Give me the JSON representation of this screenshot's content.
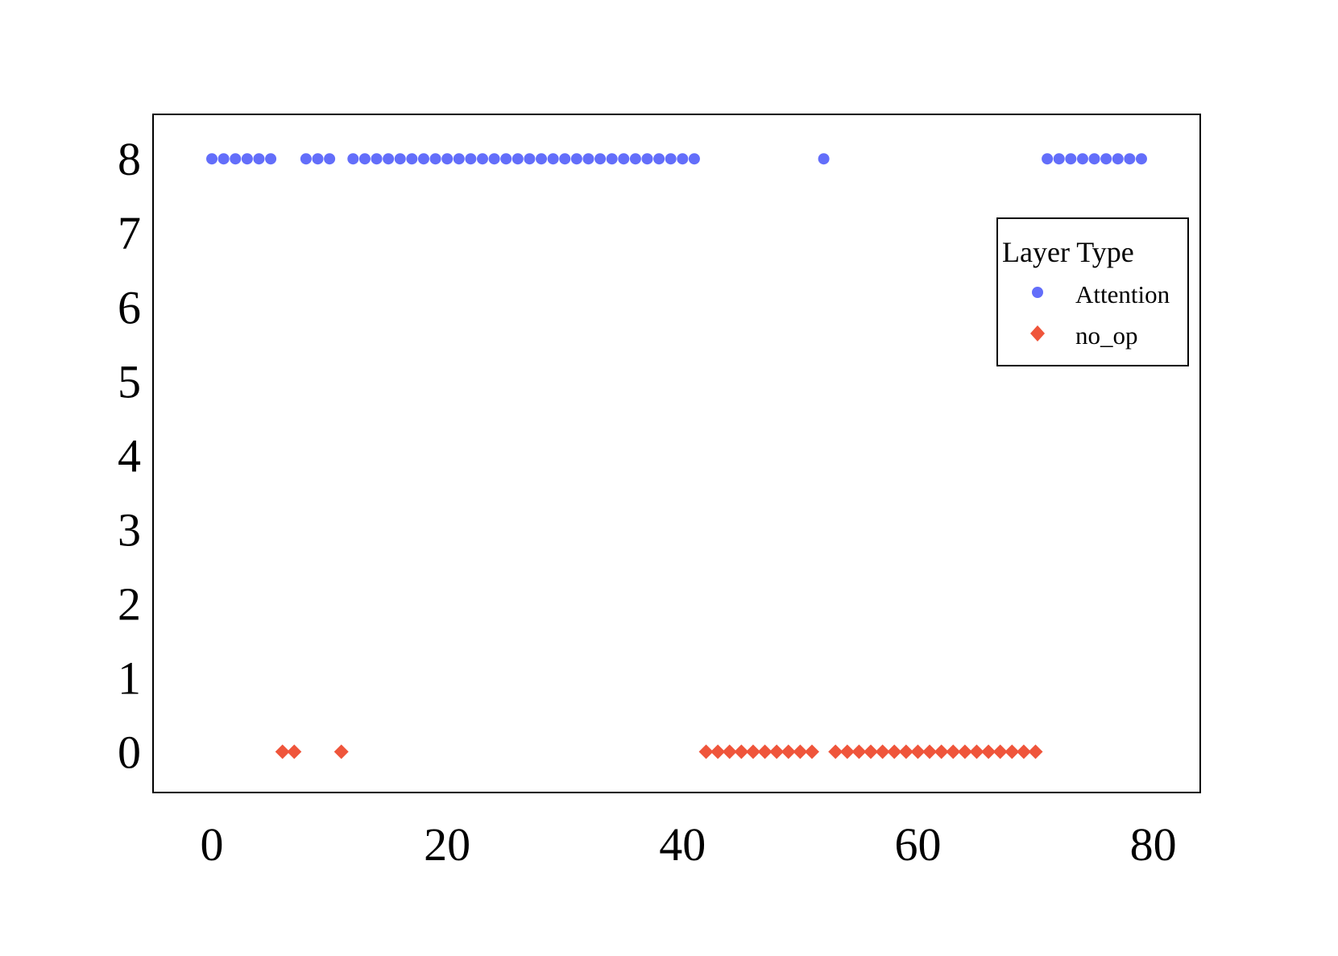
{
  "chart_data": {
    "type": "scatter",
    "title": "",
    "xlabel": "",
    "ylabel": "",
    "xlim": [
      -5,
      84
    ],
    "ylim": [
      -0.55,
      8.6
    ],
    "grid": false,
    "x_ticks": [
      0,
      20,
      40,
      60,
      80
    ],
    "y_ticks": [
      0,
      1,
      2,
      3,
      4,
      5,
      6,
      7,
      8
    ],
    "legend": {
      "title": "Layer Type",
      "placement": "top-right"
    },
    "series": [
      {
        "name": "Attention",
        "marker": "circle",
        "color": "#636efa",
        "points": [
          [
            0,
            8
          ],
          [
            1,
            8
          ],
          [
            2,
            8
          ],
          [
            3,
            8
          ],
          [
            4,
            8
          ],
          [
            5,
            8
          ],
          [
            8,
            8
          ],
          [
            9,
            8
          ],
          [
            10,
            8
          ],
          [
            12,
            8
          ],
          [
            13,
            8
          ],
          [
            14,
            8
          ],
          [
            15,
            8
          ],
          [
            16,
            8
          ],
          [
            17,
            8
          ],
          [
            18,
            8
          ],
          [
            19,
            8
          ],
          [
            20,
            8
          ],
          [
            21,
            8
          ],
          [
            22,
            8
          ],
          [
            23,
            8
          ],
          [
            24,
            8
          ],
          [
            25,
            8
          ],
          [
            26,
            8
          ],
          [
            27,
            8
          ],
          [
            28,
            8
          ],
          [
            29,
            8
          ],
          [
            30,
            8
          ],
          [
            31,
            8
          ],
          [
            32,
            8
          ],
          [
            33,
            8
          ],
          [
            34,
            8
          ],
          [
            35,
            8
          ],
          [
            36,
            8
          ],
          [
            37,
            8
          ],
          [
            38,
            8
          ],
          [
            39,
            8
          ],
          [
            40,
            8
          ],
          [
            41,
            8
          ],
          [
            52,
            8
          ],
          [
            71,
            8
          ],
          [
            72,
            8
          ],
          [
            73,
            8
          ],
          [
            74,
            8
          ],
          [
            75,
            8
          ],
          [
            76,
            8
          ],
          [
            77,
            8
          ],
          [
            78,
            8
          ],
          [
            79,
            8
          ]
        ]
      },
      {
        "name": "no_op",
        "marker": "diamond",
        "color": "#ef553b",
        "points": [
          [
            6,
            0
          ],
          [
            7,
            0
          ],
          [
            11,
            0
          ],
          [
            42,
            0
          ],
          [
            43,
            0
          ],
          [
            44,
            0
          ],
          [
            45,
            0
          ],
          [
            46,
            0
          ],
          [
            47,
            0
          ],
          [
            48,
            0
          ],
          [
            49,
            0
          ],
          [
            50,
            0
          ],
          [
            51,
            0
          ],
          [
            53,
            0
          ],
          [
            54,
            0
          ],
          [
            55,
            0
          ],
          [
            56,
            0
          ],
          [
            57,
            0
          ],
          [
            58,
            0
          ],
          [
            59,
            0
          ],
          [
            60,
            0
          ],
          [
            61,
            0
          ],
          [
            62,
            0
          ],
          [
            63,
            0
          ],
          [
            64,
            0
          ],
          [
            65,
            0
          ],
          [
            66,
            0
          ],
          [
            67,
            0
          ],
          [
            68,
            0
          ],
          [
            69,
            0
          ],
          [
            70,
            0
          ]
        ]
      }
    ]
  }
}
